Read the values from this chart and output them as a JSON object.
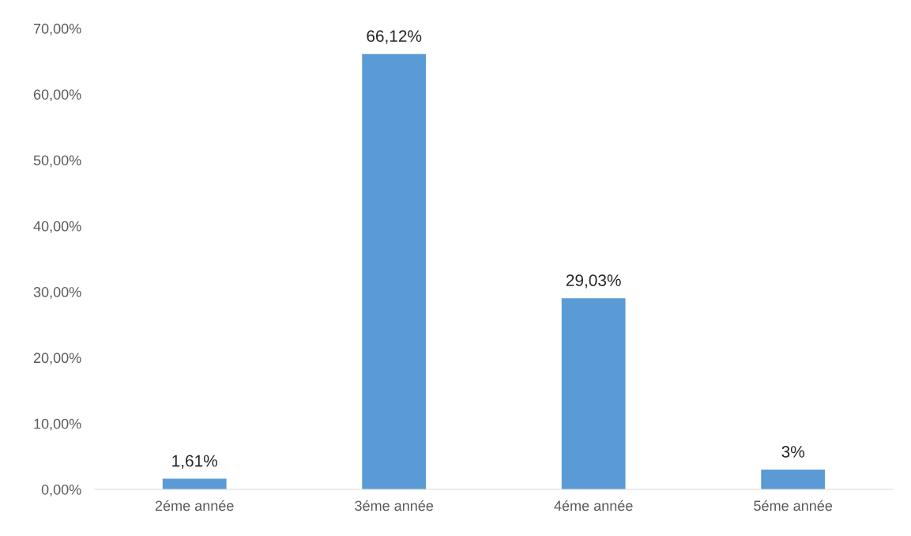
{
  "chart_data": {
    "type": "bar",
    "categories": [
      "2éme année",
      "3éme année",
      "4éme année",
      "5éme année"
    ],
    "values": [
      1.61,
      66.12,
      29.03,
      3
    ],
    "value_labels": [
      "1,61%",
      "66,12%",
      "29,03%",
      "3%"
    ],
    "color": "#5b9bd5",
    "ylim": [
      0,
      70
    ],
    "yticks": [
      {
        "value": 0,
        "label": "0,00%"
      },
      {
        "value": 10,
        "label": "10,00%"
      },
      {
        "value": 20,
        "label": "20,00%"
      },
      {
        "value": 30,
        "label": "30,00%"
      },
      {
        "value": 40,
        "label": "40,00%"
      },
      {
        "value": 50,
        "label": "50,00%"
      },
      {
        "value": 60,
        "label": "60,00%"
      },
      {
        "value": 70,
        "label": "70,00%"
      }
    ],
    "grid": false
  }
}
